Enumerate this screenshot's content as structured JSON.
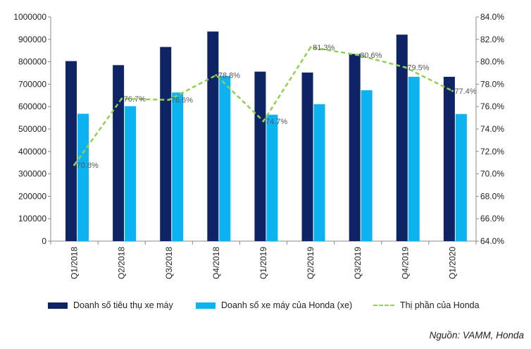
{
  "chart_data": {
    "type": "bar",
    "categories": [
      "Q1/2018",
      "Q2/2018",
      "Q3/2018",
      "Q4/2018",
      "Q1/2019",
      "Q2/2019",
      "Q3/2019",
      "Q4/2019",
      "Q1/2020"
    ],
    "series": [
      {
        "name": "Doanh số tiêu thụ xe máy",
        "type": "bar",
        "axis": "left",
        "color": "#0f2464",
        "values": [
          803000,
          785000,
          866000,
          935000,
          756000,
          752000,
          835000,
          921000,
          733000
        ]
      },
      {
        "name": "Doanh số xe máy của Honda (xe)",
        "type": "bar",
        "axis": "left",
        "color": "#0db3f0",
        "values": [
          568000,
          602000,
          663000,
          737000,
          564000,
          611000,
          673000,
          733000,
          567000
        ]
      },
      {
        "name": "Thị phần của Honda",
        "type": "line",
        "style": "dashed",
        "axis": "right",
        "color": "#8fd14f",
        "values": [
          70.8,
          76.7,
          76.6,
          78.8,
          74.7,
          81.3,
          80.6,
          79.5,
          77.4
        ],
        "labels": [
          "70.8%",
          "76.7%",
          "76.6%",
          "78.8%",
          "74.7%",
          "81.3%",
          "80.6%",
          "79.5%",
          "77.4%"
        ]
      }
    ],
    "y_left": {
      "min": 0,
      "max": 1000000,
      "step": 100000,
      "ticks": [
        "0",
        "100000",
        "200000",
        "300000",
        "400000",
        "500000",
        "600000",
        "700000",
        "800000",
        "900000",
        "1000000"
      ]
    },
    "y_right": {
      "min": 64,
      "max": 84,
      "step": 2,
      "ticks": [
        "64.0%",
        "66.0%",
        "68.0%",
        "70.0%",
        "72.0%",
        "74.0%",
        "76.0%",
        "78.0%",
        "80.0%",
        "82.0%",
        "84.0%"
      ]
    },
    "grid": false,
    "legend_position": "bottom"
  },
  "source": "Nguồn: VAMM, Honda"
}
